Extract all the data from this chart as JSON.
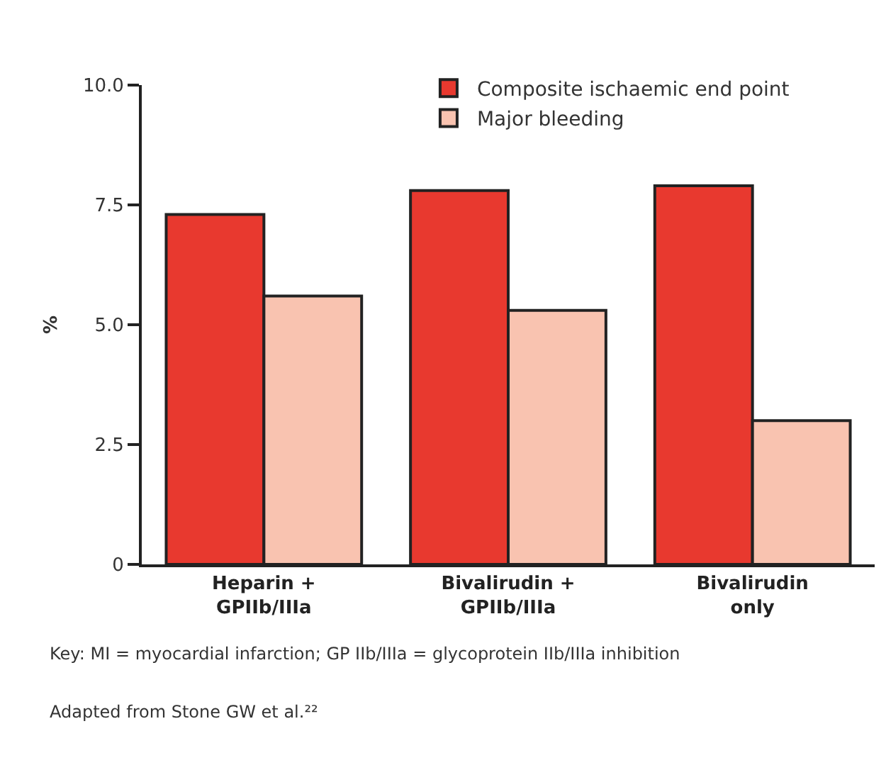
{
  "chart_data": {
    "type": "bar",
    "ylabel": "%",
    "categories": [
      "Heparin +\nGPIIb/IIIa",
      "Bivalirudin +\nGPIIb/IIIa",
      "Bivalirudin\nonly"
    ],
    "series": [
      {
        "name": "Composite ischaemic end point",
        "color": "#e8392f",
        "values": [
          7.3,
          7.8,
          7.9
        ]
      },
      {
        "name": "Major bleeding",
        "color": "#f9c3b0",
        "values": [
          5.6,
          5.3,
          3.0
        ]
      }
    ],
    "ylim": [
      0,
      10
    ],
    "yticks": [
      0,
      {
        "value": 2.5,
        "label": "2.5"
      },
      {
        "value": 5,
        "label": "5.0"
      },
      {
        "value": 7.5,
        "label": "7.5"
      },
      {
        "value": 10,
        "label": "10.0"
      }
    ],
    "legend": "top right",
    "annotations": [
      "Key: MI = myocardial infarction; GP IIb/IIIa = glycoprotein IIb/IIIa inhibition",
      "Adapted from Stone GW et al.²²"
    ]
  }
}
